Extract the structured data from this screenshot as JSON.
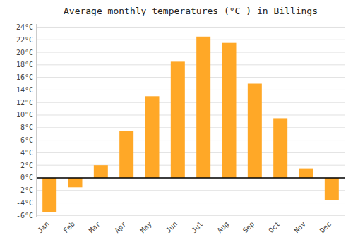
{
  "chart_data": {
    "type": "bar",
    "title": "Average monthly temperatures (°C ) in Billings",
    "categories": [
      "Jan",
      "Feb",
      "Mar",
      "Apr",
      "May",
      "Jun",
      "Jul",
      "Aug",
      "Sep",
      "Oct",
      "Nov",
      "Dec"
    ],
    "values": [
      -5.5,
      -1.5,
      2.0,
      7.5,
      13.0,
      18.5,
      22.5,
      21.5,
      15.0,
      9.5,
      1.5,
      -3.5
    ],
    "color": "#FFA827",
    "ylim": [
      -6.3,
      24.5
    ],
    "yticks": [
      {
        "value": -6,
        "label": "-6°C"
      },
      {
        "value": -4,
        "label": "-4°C"
      },
      {
        "value": -2,
        "label": "-2°C"
      },
      {
        "value": 0,
        "label": "0°C"
      },
      {
        "value": 2,
        "label": "2°C"
      },
      {
        "value": 4,
        "label": "4°C"
      },
      {
        "value": 6,
        "label": "6°C"
      },
      {
        "value": 8,
        "label": "8°C"
      },
      {
        "value": 10,
        "label": "10°C"
      },
      {
        "value": 12,
        "label": "12°C"
      },
      {
        "value": 14,
        "label": "14°C"
      },
      {
        "value": 16,
        "label": "16°C"
      },
      {
        "value": 18,
        "label": "18°C"
      },
      {
        "value": 20,
        "label": "20°C"
      },
      {
        "value": 22,
        "label": "22°C"
      },
      {
        "value": 24,
        "label": "24°C"
      }
    ],
    "grid": true
  }
}
